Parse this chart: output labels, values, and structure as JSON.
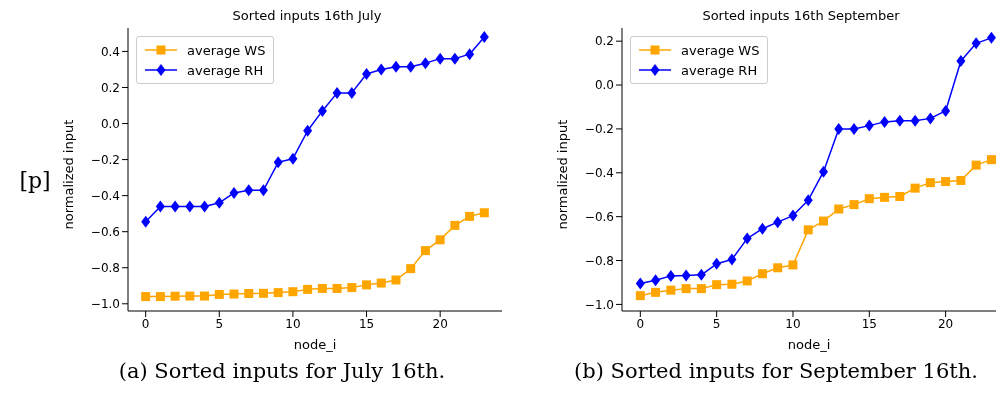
{
  "chart_data": [
    {
      "type": "line",
      "title": "Sorted inputs 16th July",
      "xlabel": "node_i",
      "ylabel": "normalized input",
      "annotations": [
        "[p]",
        "(a) Sorted inputs for July 16th."
      ],
      "x": [
        0,
        1,
        2,
        3,
        4,
        5,
        6,
        7,
        8,
        9,
        10,
        11,
        12,
        13,
        14,
        15,
        16,
        17,
        18,
        19,
        20,
        21,
        22,
        23
      ],
      "xlim": [
        -1.2,
        24.2
      ],
      "xticks": [
        0,
        5,
        10,
        15,
        20
      ],
      "ylim": [
        -1.04,
        0.53
      ],
      "yticks": [
        {
          "value": -1.0,
          "label": "−1.0"
        },
        {
          "value": -0.8,
          "label": "−0.8"
        },
        {
          "value": -0.6,
          "label": "−0.6"
        },
        {
          "value": -0.4,
          "label": "−0.4"
        },
        {
          "value": -0.2,
          "label": "−0.2"
        },
        {
          "value": 0.0,
          "label": "0.0"
        },
        {
          "value": 0.2,
          "label": "0.2"
        },
        {
          "value": 0.4,
          "label": "0.4"
        }
      ],
      "legend": "top left",
      "grid": false,
      "series": [
        {
          "name": "average WS",
          "color": "#ffa500",
          "marker": "square",
          "values": [
            -0.96,
            -0.96,
            -0.958,
            -0.957,
            -0.957,
            -0.948,
            -0.946,
            -0.943,
            -0.942,
            -0.938,
            -0.933,
            -0.92,
            -0.915,
            -0.915,
            -0.91,
            -0.895,
            -0.885,
            -0.868,
            -0.805,
            -0.705,
            -0.645,
            -0.565,
            -0.515,
            -0.495
          ]
        },
        {
          "name": "average RH",
          "color": "#0000ff",
          "marker": "diamond",
          "values": [
            -0.545,
            -0.46,
            -0.46,
            -0.46,
            -0.46,
            -0.44,
            -0.385,
            -0.37,
            -0.37,
            -0.215,
            -0.195,
            -0.04,
            0.07,
            0.17,
            0.17,
            0.275,
            0.3,
            0.315,
            0.315,
            0.335,
            0.36,
            0.36,
            0.385,
            0.48
          ]
        }
      ]
    },
    {
      "type": "line",
      "title": "Sorted inputs 16th September",
      "xlabel": "node_i",
      "ylabel": "normalized input",
      "annotations": [
        "(b) Sorted inputs for September 16th."
      ],
      "x": [
        0,
        1,
        2,
        3,
        4,
        5,
        6,
        7,
        8,
        9,
        10,
        11,
        12,
        13,
        14,
        15,
        16,
        17,
        18,
        19,
        20,
        21,
        22,
        23
      ],
      "xlim": [
        -1.2,
        23.3
      ],
      "xticks": [
        0,
        5,
        10,
        15,
        20
      ],
      "ylim": [
        -1.03,
        0.26
      ],
      "yticks": [
        {
          "value": -1.0,
          "label": "−1.0"
        },
        {
          "value": -0.8,
          "label": "−0.8"
        },
        {
          "value": -0.6,
          "label": "−0.6"
        },
        {
          "value": -0.4,
          "label": "−0.4"
        },
        {
          "value": -0.2,
          "label": "−0.2"
        },
        {
          "value": 0.0,
          "label": "0.0"
        },
        {
          "value": 0.2,
          "label": "0.2"
        }
      ],
      "legend": "top left",
      "grid": false,
      "series": [
        {
          "name": "average WS",
          "color": "#ffa500",
          "marker": "square",
          "values": [
            -0.96,
            -0.945,
            -0.935,
            -0.928,
            -0.928,
            -0.91,
            -0.908,
            -0.893,
            -0.86,
            -0.833,
            -0.82,
            -0.66,
            -0.62,
            -0.565,
            -0.545,
            -0.518,
            -0.512,
            -0.508,
            -0.47,
            -0.445,
            -0.44,
            -0.435,
            -0.365,
            -0.34
          ]
        },
        {
          "name": "average RH",
          "color": "#0000ff",
          "marker": "diamond",
          "values": [
            -0.905,
            -0.89,
            -0.87,
            -0.868,
            -0.865,
            -0.815,
            -0.795,
            -0.7,
            -0.655,
            -0.625,
            -0.595,
            -0.525,
            -0.395,
            -0.2,
            -0.2,
            -0.185,
            -0.168,
            -0.163,
            -0.163,
            -0.152,
            -0.118,
            0.11,
            0.19,
            0.215
          ]
        }
      ]
    }
  ]
}
